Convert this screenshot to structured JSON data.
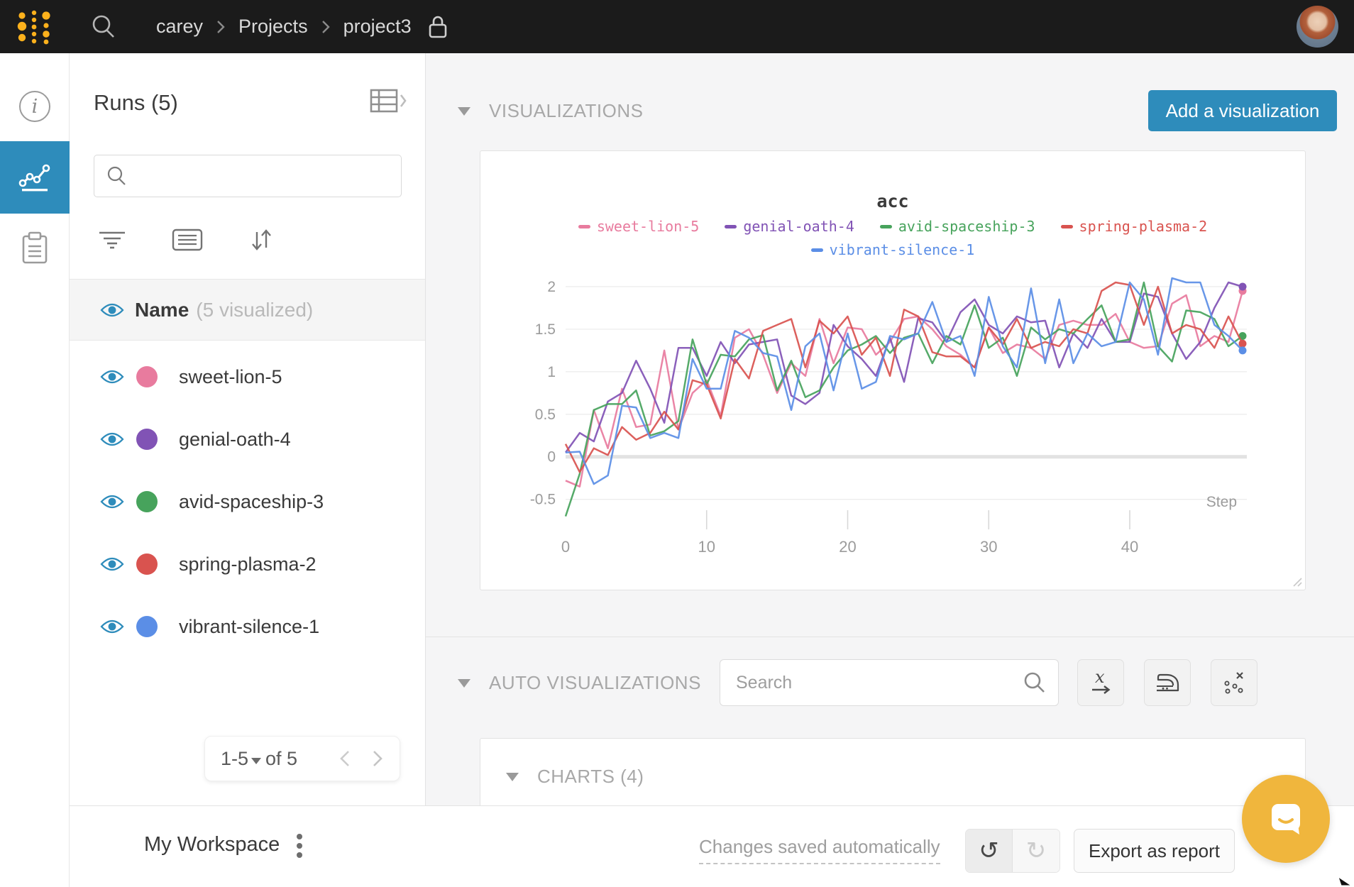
{
  "header": {
    "breadcrumb": {
      "user": "carey",
      "section": "Projects",
      "project": "project3"
    }
  },
  "runs_panel": {
    "title": "Runs (5)",
    "name_header": "Name",
    "visualized_note": "(5 visualized)",
    "runs": [
      {
        "name": "sweet-lion-5",
        "color": "#e87b9e"
      },
      {
        "name": "genial-oath-4",
        "color": "#8153b5"
      },
      {
        "name": "avid-spaceship-3",
        "color": "#47a35c"
      },
      {
        "name": "spring-plasma-2",
        "color": "#d9534f"
      },
      {
        "name": "vibrant-silence-1",
        "color": "#5b8ee6"
      }
    ],
    "pagination": {
      "range": "1-5",
      "of": "of 5"
    }
  },
  "sections": {
    "visualizations": "VISUALIZATIONS",
    "auto_visualizations": "AUTO VISUALIZATIONS",
    "charts": "CHARTS (4)"
  },
  "buttons": {
    "add_visualization": "Add a visualization",
    "export_report": "Export as report"
  },
  "auto_search": {
    "placeholder": "Search"
  },
  "bottom_bar": {
    "workspace_title": "My Workspace",
    "saved_note": "Changes saved automatically"
  },
  "colors": {
    "accent_teal": "#2e8cbb",
    "brand_yellow": "#fcb11c",
    "chat_yellow": "#f0b63d"
  },
  "chart_data": {
    "type": "line",
    "title": "acc",
    "xlabel": "Step",
    "ylabel": "",
    "xlim": [
      0,
      48
    ],
    "ylim": [
      -0.82,
      2.25
    ],
    "xticks": [
      0,
      10,
      20,
      30,
      40
    ],
    "yticks": [
      -0.5,
      0,
      0.5,
      1,
      1.5,
      2
    ],
    "grid": true,
    "legend_position": "top",
    "series": [
      {
        "name": "sweet-lion-5",
        "color": "#e87b9e",
        "values": [
          -0.28,
          -0.35,
          0.55,
          0.1,
          0.8,
          0.35,
          0.38,
          1.25,
          0.32,
          0.75,
          0.9,
          0.48,
          1.4,
          1.5,
          1.2,
          0.75,
          1.1,
          0.95,
          1.62,
          1.1,
          1.52,
          1.5,
          1.2,
          1.35,
          1.62,
          1.65,
          1.5,
          1.3,
          1.2,
          1.05,
          1.52,
          1.22,
          1.32,
          1.28,
          1.15,
          1.55,
          1.6,
          1.55,
          1.55,
          1.68,
          1.35,
          1.28,
          1.3,
          1.8,
          1.9,
          1.3,
          1.42,
          1.35,
          1.95
        ]
      },
      {
        "name": "genial-oath-4",
        "color": "#8153b5",
        "values": [
          0.05,
          0.28,
          0.18,
          0.65,
          0.75,
          1.13,
          0.8,
          0.4,
          1.28,
          1.28,
          0.95,
          1.35,
          1.1,
          1.32,
          1.35,
          1.38,
          0.72,
          0.62,
          0.75,
          1.55,
          1.3,
          1.15,
          0.95,
          1.4,
          0.88,
          1.63,
          1.58,
          1.35,
          1.7,
          1.85,
          1.55,
          1.45,
          1.65,
          1.58,
          1.6,
          1.05,
          1.45,
          1.28,
          1.62,
          1.35,
          1.35,
          1.92,
          1.88,
          1.45,
          1.15,
          1.35,
          1.75,
          2.05,
          2.0
        ]
      },
      {
        "name": "avid-spaceship-3",
        "color": "#47a35c",
        "values": [
          -0.7,
          -0.2,
          0.55,
          0.62,
          0.62,
          0.78,
          0.25,
          0.3,
          0.42,
          1.38,
          0.85,
          1.2,
          1.18,
          1.38,
          1.43,
          0.78,
          1.13,
          0.7,
          0.78,
          1.05,
          1.25,
          1.32,
          1.42,
          1.22,
          1.4,
          1.45,
          1.1,
          1.42,
          1.32,
          1.78,
          1.28,
          1.4,
          0.95,
          1.52,
          1.38,
          1.5,
          1.45,
          1.62,
          1.78,
          1.35,
          1.38,
          2.05,
          1.3,
          1.12,
          1.72,
          1.7,
          1.62,
          1.3,
          1.42
        ]
      },
      {
        "name": "spring-plasma-2",
        "color": "#d9534f",
        "values": [
          0.15,
          -0.18,
          0.1,
          0.02,
          0.35,
          0.2,
          0.28,
          0.53,
          0.32,
          0.9,
          0.85,
          0.45,
          1.15,
          0.92,
          1.48,
          1.55,
          1.62,
          1.05,
          1.6,
          1.45,
          1.65,
          1.2,
          1.4,
          0.95,
          1.73,
          1.65,
          1.23,
          1.18,
          1.18,
          1.05,
          1.52,
          1.32,
          1.62,
          1.28,
          1.35,
          1.3,
          1.5,
          1.45,
          1.95,
          2.05,
          2.02,
          1.55,
          2.0,
          1.45,
          1.55,
          1.5,
          1.28,
          1.65,
          1.33
        ]
      },
      {
        "name": "vibrant-silence-1",
        "color": "#5b8ee6",
        "values": [
          0.05,
          0.06,
          -0.32,
          -0.22,
          0.6,
          0.58,
          0.22,
          0.28,
          0.22,
          1.15,
          0.8,
          0.8,
          1.48,
          1.4,
          1.22,
          1.18,
          0.55,
          1.3,
          1.45,
          0.78,
          1.45,
          0.8,
          0.88,
          1.42,
          1.38,
          1.45,
          1.82,
          1.35,
          1.42,
          0.95,
          1.88,
          1.3,
          1.05,
          1.98,
          1.1,
          1.85,
          1.1,
          1.45,
          1.3,
          1.35,
          2.05,
          1.85,
          1.2,
          2.1,
          2.05,
          2.05,
          1.55,
          1.42,
          1.25
        ]
      }
    ]
  }
}
